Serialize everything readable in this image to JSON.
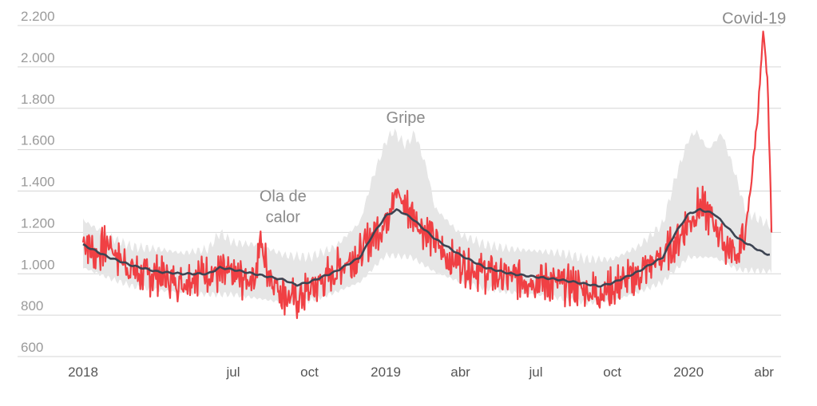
{
  "chart_data": {
    "type": "line",
    "title": "",
    "xlabel": "",
    "ylabel": "",
    "x_range": [
      "2018-01-01",
      "2020-04-10"
    ],
    "ylim": [
      600,
      2200
    ],
    "y_ticks": [
      600,
      800,
      1000,
      1200,
      1400,
      1600,
      1800,
      2000,
      2200
    ],
    "y_tick_labels": [
      "600",
      "800",
      "1.000",
      "1.200",
      "1.400",
      "1.600",
      "1.800",
      "2.000",
      "2.200"
    ],
    "x_ticks": [
      {
        "label": "2018",
        "date": "2018-01-01"
      },
      {
        "label": "jul",
        "date": "2018-07-01"
      },
      {
        "label": "oct",
        "date": "2018-10-01"
      },
      {
        "label": "2019",
        "date": "2019-01-01"
      },
      {
        "label": "abr",
        "date": "2019-04-01"
      },
      {
        "label": "jul",
        "date": "2019-07-01"
      },
      {
        "label": "oct",
        "date": "2019-10-01"
      },
      {
        "label": "2020",
        "date": "2020-01-01"
      },
      {
        "label": "abr",
        "date": "2020-04-01"
      }
    ],
    "grid": true,
    "colors": {
      "observed": "#f04044",
      "expected": "#3d4452",
      "band": "#e6e6e6",
      "grid": "#d6d6d6"
    },
    "series": [
      {
        "role": "observed",
        "points": [
          [
            "2018-01-01",
            1180
          ],
          [
            "2018-01-15",
            1090
          ],
          [
            "2018-02-01",
            1150
          ],
          [
            "2018-02-15",
            1070
          ],
          [
            "2018-03-01",
            1020
          ],
          [
            "2018-03-15",
            990
          ],
          [
            "2018-04-01",
            1000
          ],
          [
            "2018-04-15",
            970
          ],
          [
            "2018-05-01",
            960
          ],
          [
            "2018-05-15",
            1000
          ],
          [
            "2018-06-01",
            1010
          ],
          [
            "2018-06-15",
            1000
          ],
          [
            "2018-07-01",
            990
          ],
          [
            "2018-07-15",
            970
          ],
          [
            "2018-07-28",
            1000
          ],
          [
            "2018-08-03",
            1160
          ],
          [
            "2018-08-10",
            1040
          ],
          [
            "2018-08-20",
            960
          ],
          [
            "2018-09-01",
            900
          ],
          [
            "2018-09-15",
            870
          ],
          [
            "2018-10-01",
            920
          ],
          [
            "2018-10-15",
            960
          ],
          [
            "2018-11-01",
            1010
          ],
          [
            "2018-11-15",
            1060
          ],
          [
            "2018-12-01",
            1090
          ],
          [
            "2018-12-15",
            1180
          ],
          [
            "2019-01-01",
            1250
          ],
          [
            "2019-01-10",
            1400
          ],
          [
            "2019-01-20",
            1350
          ],
          [
            "2019-02-01",
            1290
          ],
          [
            "2019-02-15",
            1220
          ],
          [
            "2019-03-01",
            1160
          ],
          [
            "2019-03-15",
            1080
          ],
          [
            "2019-04-01",
            1050
          ],
          [
            "2019-04-15",
            1030
          ],
          [
            "2019-05-01",
            1010
          ],
          [
            "2019-05-15",
            990
          ],
          [
            "2019-06-01",
            980
          ],
          [
            "2019-06-15",
            980
          ],
          [
            "2019-07-01",
            970
          ],
          [
            "2019-07-15",
            960
          ],
          [
            "2019-08-01",
            950
          ],
          [
            "2019-08-15",
            940
          ],
          [
            "2019-09-01",
            920
          ],
          [
            "2019-09-15",
            910
          ],
          [
            "2019-10-01",
            930
          ],
          [
            "2019-10-15",
            960
          ],
          [
            "2019-11-01",
            990
          ],
          [
            "2019-11-15",
            1040
          ],
          [
            "2019-12-01",
            1080
          ],
          [
            "2019-12-15",
            1140
          ],
          [
            "2020-01-01",
            1250
          ],
          [
            "2020-01-15",
            1330
          ],
          [
            "2020-02-01",
            1250
          ],
          [
            "2020-02-15",
            1130
          ],
          [
            "2020-03-01",
            1100
          ],
          [
            "2020-03-10",
            1200
          ],
          [
            "2020-03-18",
            1500
          ],
          [
            "2020-03-25",
            1800
          ],
          [
            "2020-03-31",
            2150
          ],
          [
            "2020-04-05",
            1950
          ],
          [
            "2020-04-08",
            1550
          ],
          [
            "2020-04-10",
            1190
          ]
        ]
      },
      {
        "role": "expected",
        "points": [
          [
            "2018-01-01",
            1140
          ],
          [
            "2018-02-01",
            1080
          ],
          [
            "2018-03-01",
            1040
          ],
          [
            "2018-04-01",
            1010
          ],
          [
            "2018-05-01",
            1000
          ],
          [
            "2018-06-01",
            1000
          ],
          [
            "2018-06-15",
            1030
          ],
          [
            "2018-07-01",
            1020
          ],
          [
            "2018-08-01",
            995
          ],
          [
            "2018-09-01",
            970
          ],
          [
            "2018-09-15",
            945
          ],
          [
            "2018-10-01",
            960
          ],
          [
            "2018-11-01",
            1010
          ],
          [
            "2018-12-01",
            1080
          ],
          [
            "2018-12-15",
            1180
          ],
          [
            "2019-01-01",
            1280
          ],
          [
            "2019-01-15",
            1310
          ],
          [
            "2019-02-01",
            1270
          ],
          [
            "2019-03-01",
            1170
          ],
          [
            "2019-04-01",
            1090
          ],
          [
            "2019-05-01",
            1030
          ],
          [
            "2019-06-01",
            1000
          ],
          [
            "2019-07-01",
            985
          ],
          [
            "2019-08-01",
            970
          ],
          [
            "2019-09-01",
            950
          ],
          [
            "2019-09-15",
            940
          ],
          [
            "2019-10-01",
            955
          ],
          [
            "2019-11-01",
            1010
          ],
          [
            "2019-12-01",
            1080
          ],
          [
            "2019-12-15",
            1190
          ],
          [
            "2020-01-01",
            1290
          ],
          [
            "2020-01-15",
            1310
          ],
          [
            "2020-02-01",
            1290
          ],
          [
            "2020-03-01",
            1170
          ],
          [
            "2020-04-01",
            1100
          ],
          [
            "2020-04-10",
            1090
          ]
        ]
      },
      {
        "role": "band",
        "upper": [
          [
            "2018-01-01",
            1260
          ],
          [
            "2018-02-01",
            1180
          ],
          [
            "2018-03-01",
            1130
          ],
          [
            "2018-04-01",
            1120
          ],
          [
            "2018-05-01",
            1100
          ],
          [
            "2018-06-01",
            1120
          ],
          [
            "2018-06-15",
            1200
          ],
          [
            "2018-07-01",
            1150
          ],
          [
            "2018-08-01",
            1140
          ],
          [
            "2018-09-01",
            1090
          ],
          [
            "2018-10-01",
            1080
          ],
          [
            "2018-11-01",
            1130
          ],
          [
            "2018-12-01",
            1250
          ],
          [
            "2018-12-15",
            1450
          ],
          [
            "2019-01-01",
            1640
          ],
          [
            "2019-01-10",
            1690
          ],
          [
            "2019-01-25",
            1620
          ],
          [
            "2019-02-05",
            1680
          ],
          [
            "2019-02-20",
            1500
          ],
          [
            "2019-03-01",
            1320
          ],
          [
            "2019-04-01",
            1190
          ],
          [
            "2019-05-01",
            1140
          ],
          [
            "2019-06-01",
            1120
          ],
          [
            "2019-07-01",
            1110
          ],
          [
            "2019-08-01",
            1100
          ],
          [
            "2019-09-01",
            1070
          ],
          [
            "2019-10-01",
            1070
          ],
          [
            "2019-11-01",
            1130
          ],
          [
            "2019-12-01",
            1240
          ],
          [
            "2019-12-15",
            1450
          ],
          [
            "2020-01-01",
            1650
          ],
          [
            "2020-01-10",
            1690
          ],
          [
            "2020-01-25",
            1600
          ],
          [
            "2020-02-10",
            1680
          ],
          [
            "2020-02-25",
            1500
          ],
          [
            "2020-03-10",
            1300
          ],
          [
            "2020-04-10",
            1230
          ]
        ],
        "lower": [
          [
            "2018-01-01",
            1030
          ],
          [
            "2018-02-01",
            980
          ],
          [
            "2018-03-01",
            940
          ],
          [
            "2018-04-01",
            920
          ],
          [
            "2018-05-01",
            910
          ],
          [
            "2018-06-01",
            900
          ],
          [
            "2018-07-01",
            900
          ],
          [
            "2018-08-01",
            880
          ],
          [
            "2018-09-01",
            860
          ],
          [
            "2018-10-01",
            870
          ],
          [
            "2018-11-01",
            910
          ],
          [
            "2018-12-01",
            960
          ],
          [
            "2019-01-01",
            1090
          ],
          [
            "2019-02-01",
            1080
          ],
          [
            "2019-03-01",
            1010
          ],
          [
            "2019-04-01",
            960
          ],
          [
            "2019-05-01",
            930
          ],
          [
            "2019-06-01",
            910
          ],
          [
            "2019-07-01",
            900
          ],
          [
            "2019-08-01",
            880
          ],
          [
            "2019-09-01",
            860
          ],
          [
            "2019-10-01",
            870
          ],
          [
            "2019-11-01",
            910
          ],
          [
            "2019-12-01",
            960
          ],
          [
            "2020-01-01",
            1080
          ],
          [
            "2020-02-01",
            1080
          ],
          [
            "2020-03-01",
            1020
          ],
          [
            "2020-04-10",
            1010
          ]
        ]
      }
    ],
    "annotations": [
      {
        "text": "Covid-19",
        "x": "2020-03-20",
        "y": 2210
      },
      {
        "text": "Gripe",
        "x": "2019-01-25",
        "y": 1730
      },
      {
        "text": "Ola de",
        "x": "2018-08-30",
        "y": 1350
      },
      {
        "text": "calor",
        "x": "2018-08-30",
        "y": 1250
      }
    ]
  }
}
